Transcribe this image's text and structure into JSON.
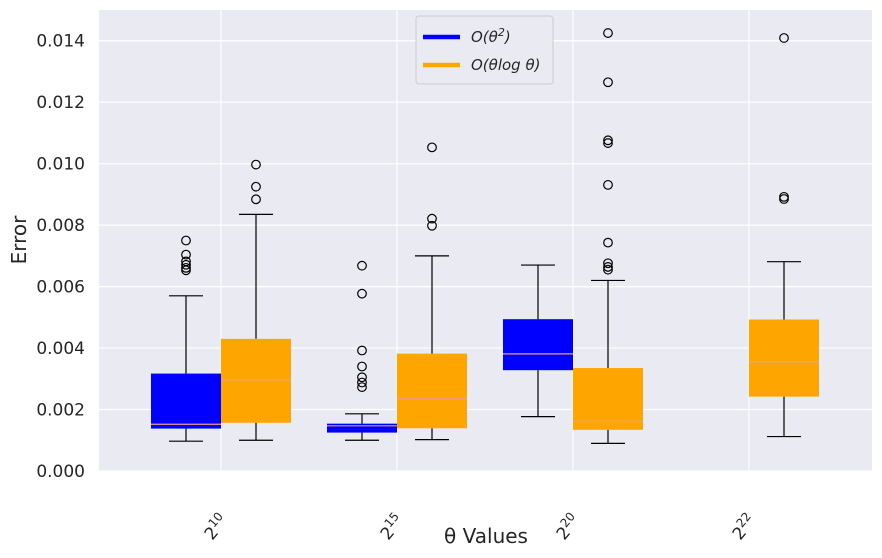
{
  "chart_data": {
    "type": "box",
    "xlabel": "θ Values",
    "ylabel": "Error",
    "ylim": [
      0,
      0.015
    ],
    "yticks": [
      "0.000",
      "0.002",
      "0.004",
      "0.006",
      "0.008",
      "0.010",
      "0.012",
      "0.014"
    ],
    "ytick_values": [
      0,
      0.002,
      0.004,
      0.006,
      0.008,
      0.01,
      0.012,
      0.014
    ],
    "categories": [
      "2^10",
      "2^15",
      "2^20",
      "2^22"
    ],
    "category_labels": [
      {
        "base": "2",
        "exp": "10"
      },
      {
        "base": "2",
        "exp": "15"
      },
      {
        "base": "2",
        "exp": "20"
      },
      {
        "base": "2",
        "exp": "22"
      }
    ],
    "grid": true,
    "background": "#eaeaf2",
    "median_color": "#e8a08a",
    "legend_position": "top-center",
    "series": [
      {
        "name": "O(θ^2)",
        "legend_main": "O(θ",
        "legend_sup": "2",
        "legend_tail": ")",
        "color": "#0000ff",
        "boxes": [
          {
            "category": "2^10",
            "whislo": 0.00097,
            "q1": 0.00138,
            "med": 0.00152,
            "q3": 0.00317,
            "whishi": 0.0057,
            "fliers": [
              0.00653,
              0.00661,
              0.00671,
              0.00682,
              0.00704,
              0.0075
            ]
          },
          {
            "category": "2^15",
            "whislo": 0.001,
            "q1": 0.00125,
            "med": 0.00147,
            "q3": 0.00154,
            "whishi": 0.00186,
            "fliers": [
              0.00273,
              0.00288,
              0.00305,
              0.0034,
              0.00392,
              0.00577,
              0.00668
            ]
          },
          {
            "category": "2^20",
            "whislo": 0.00177,
            "q1": 0.00328,
            "med": 0.00381,
            "q3": 0.00494,
            "whishi": 0.0067,
            "fliers": []
          }
        ]
      },
      {
        "name": "O(θ log θ)",
        "legend_main": "O(θlog θ)",
        "color": "#ffa500",
        "boxes": [
          {
            "category": "2^10",
            "whislo": 0.001,
            "q1": 0.00157,
            "med": 0.00297,
            "q3": 0.0043,
            "whishi": 0.00835,
            "fliers": [
              0.00884,
              0.00925,
              0.00997
            ]
          },
          {
            "category": "2^15",
            "whislo": 0.00102,
            "q1": 0.00139,
            "med": 0.00235,
            "q3": 0.00382,
            "whishi": 0.007,
            "fliers": [
              0.00798,
              0.00821,
              0.01053
            ]
          },
          {
            "category": "2^20",
            "whislo": 0.0009,
            "q1": 0.00134,
            "med": 0.00162,
            "q3": 0.00335,
            "whishi": 0.0062,
            "fliers": [
              0.00655,
              0.00664,
              0.00676,
              0.00743,
              0.00931,
              0.01067,
              0.01076,
              0.01265,
              0.01425
            ]
          },
          {
            "category": "2^22",
            "whislo": 0.00112,
            "q1": 0.00242,
            "med": 0.00355,
            "q3": 0.00493,
            "whishi": 0.00681,
            "fliers": [
              0.00885,
              0.00892,
              0.01409
            ]
          }
        ]
      }
    ]
  }
}
